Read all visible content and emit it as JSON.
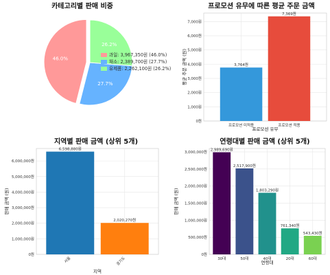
{
  "chart_data": [
    {
      "type": "pie",
      "title": "카테고리별 판매 비중",
      "slices": [
        {
          "label": "과일: 3,967,350원 (46.0%)",
          "value": 46.0,
          "pct_label": "46.0%",
          "color": "#ff9999"
        },
        {
          "label": "채소: 2,389,700원 (27.7%)",
          "value": 27.7,
          "pct_label": "27.7%",
          "color": "#66b3ff"
        },
        {
          "label": "유제품: 2,262,100원 (26.2%)",
          "value": 26.2,
          "pct_label": "26.2%",
          "color": "#99ff99"
        }
      ],
      "legend": "right"
    },
    {
      "type": "bar",
      "title": "프로모션 유무에 따른 평균 주문 금액",
      "xlabel": "프로모션 유무",
      "ylabel": "평균 주문 금액 (원)",
      "categories": [
        "프로모션 미적용",
        "프로모션 적용"
      ],
      "values": [
        3764,
        7369
      ],
      "value_labels": [
        "3,764원",
        "7,369원"
      ],
      "colors": [
        "#3498db",
        "#e74c3c"
      ],
      "ylim": [
        0,
        7600
      ],
      "yticks": [
        0,
        1000,
        2000,
        3000,
        4000,
        5000,
        6000,
        7000
      ],
      "ytick_labels": [
        "0원",
        "1,000원",
        "2,000원",
        "3,000원",
        "4,000원",
        "5,000원",
        "6,000원",
        "7,000원"
      ],
      "grid": true
    },
    {
      "type": "bar",
      "title": "지역별 판매 금액 (상위 5개)",
      "xlabel": "지역",
      "ylabel": "판매 금액 (원)",
      "categories": [
        "서울",
        "경기도"
      ],
      "values": [
        6598880,
        2020270
      ],
      "value_labels": [
        "6,598,880원",
        "2,020,270원"
      ],
      "colors": [
        "#1f77b4",
        "#ff7f0e"
      ],
      "ylim": [
        0,
        6800000
      ],
      "yticks": [
        0,
        1000000,
        2000000,
        3000000,
        4000000,
        5000000,
        6000000
      ],
      "ytick_labels": [
        "0원",
        "1,000,000원",
        "2,000,000원",
        "3,000,000원",
        "4,000,000원",
        "5,000,000원",
        "6,000,000원"
      ],
      "grid": true
    },
    {
      "type": "bar",
      "title": "연령대별 판매 금액 (상위 5개)",
      "xlabel": "연령대",
      "ylabel": "판매 금액 (원)",
      "categories": [
        "30대",
        "50대",
        "40대",
        "20대",
        "60대"
      ],
      "values": [
        2989690,
        2517900,
        1803290,
        761340,
        543430
      ],
      "value_labels": [
        "2,989,690원",
        "2,517,900원",
        "1,803,290원",
        "761,340원",
        "543,430원"
      ],
      "colors": [
        "#440154",
        "#3b528b",
        "#21918c",
        "#21a884",
        "#7ad151"
      ],
      "ylim": [
        0,
        3100000
      ],
      "yticks": [
        0,
        500000,
        1000000,
        1500000,
        2000000,
        2500000,
        3000000
      ],
      "ytick_labels": [
        "0원",
        "500,000원",
        "1,000,000원",
        "1,500,000원",
        "2,000,000원",
        "2,500,000원",
        "3,000,000원"
      ],
      "grid": true
    }
  ]
}
